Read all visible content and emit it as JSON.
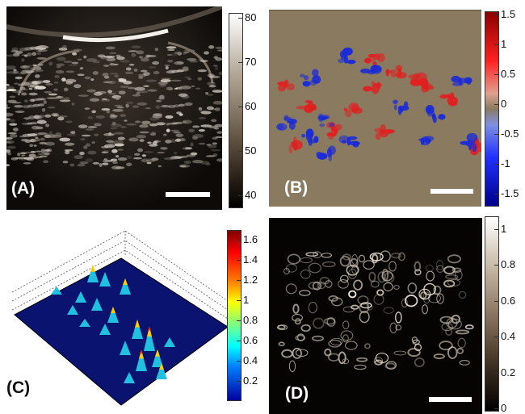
{
  "panels": {
    "a": {
      "label": "(A)",
      "ticks": [
        "80",
        "70",
        "60",
        "50",
        "40"
      ]
    },
    "b": {
      "label": "(B)",
      "ticks": [
        "1.5",
        "1",
        "0.5",
        "0",
        "-0.5",
        "-1",
        "-1.5"
      ]
    },
    "c": {
      "label": "(C)",
      "ticks": [
        "1.6",
        "1.4",
        "1.2",
        "1",
        "0.8",
        "0.6",
        "0.4",
        "0.2"
      ]
    },
    "d": {
      "label": "(D)",
      "ticks": [
        "1",
        "0.8",
        "0.6",
        "0.4",
        "0.2",
        "0"
      ]
    }
  },
  "colors": {
    "doppler_background": "#8a7b60",
    "positive_flow": "#e02020",
    "negative_flow": "#1a2ad8",
    "surface_base": "#0a1470"
  }
}
